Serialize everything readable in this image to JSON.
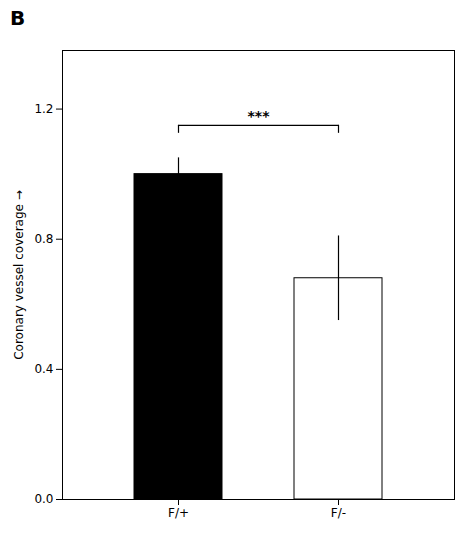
{
  "chart_data": {
    "type": "bar",
    "title": "B",
    "categories": [
      "F/+",
      "F/-"
    ],
    "values": [
      1.0,
      0.68
    ],
    "errors": [
      0.05,
      0.13
    ],
    "colors": [
      "#000000",
      "#ffffff"
    ],
    "ylabel": "Coronary vessel coverage",
    "ylim": [
      0.0,
      1.38
    ],
    "yticks": [
      {
        "value": 0,
        "label": "0.0"
      },
      0.4,
      0.8,
      1.2
    ],
    "annotations": [
      {
        "text": "***",
        "x1": "F/+",
        "x2": "F/-",
        "y": 1.15
      }
    ]
  }
}
